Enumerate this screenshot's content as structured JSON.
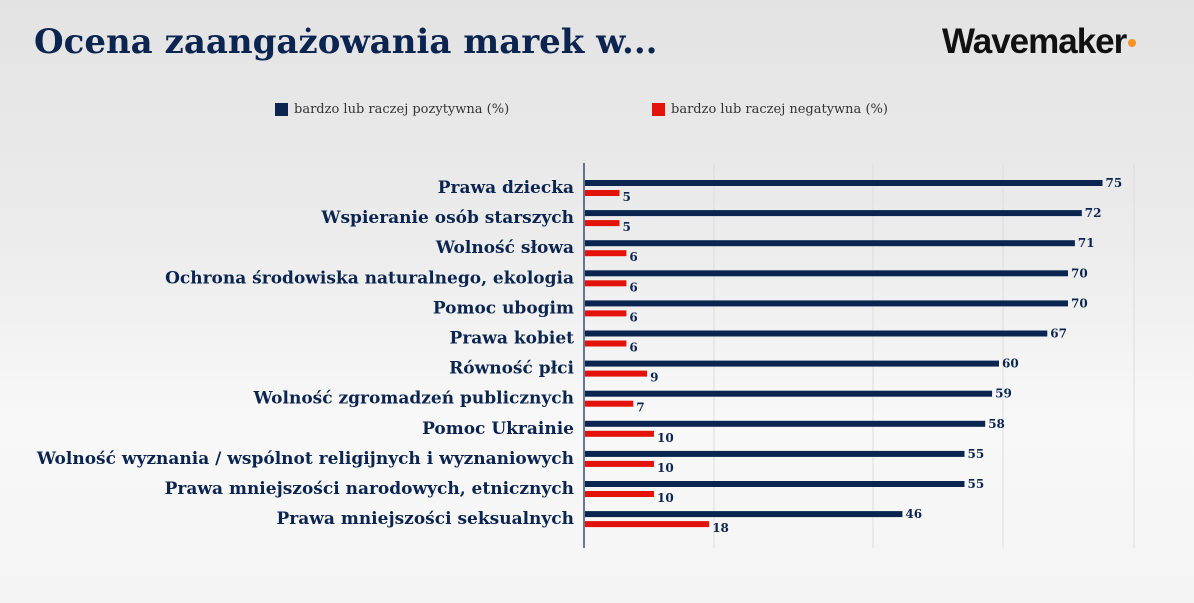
{
  "title": "Ocena zaangażowania marek w...",
  "logo": "Wavemaker",
  "chart_data": {
    "type": "bar",
    "orientation": "horizontal",
    "categories": [
      "Prawa dziecka",
      "Wspieranie osób starszych",
      "Wolność słowa",
      "Ochrona środowiska naturalnego, ekologia",
      "Pomoc ubogim",
      "Prawa kobiet",
      "Równość płci",
      "Wolność zgromadzeń publicznych",
      "Pomoc Ukrainie",
      "Wolność wyznania / wspólnot religijnych i wyznaniowych",
      "Prawa mniejszości narodowych, etnicznych",
      "Prawa mniejszości seksualnych"
    ],
    "series": [
      {
        "name": "bardzo lub raczej pozytywna (%)",
        "color": "#0b2550",
        "values": [
          75,
          72,
          71,
          70,
          70,
          67,
          60,
          59,
          58,
          55,
          55,
          46
        ]
      },
      {
        "name": "bardzo lub raczej negatywna (%)",
        "color": "#e3120b",
        "values": [
          5,
          5,
          6,
          6,
          6,
          6,
          9,
          7,
          10,
          10,
          10,
          18
        ]
      }
    ],
    "legend_position": "top",
    "grid": true,
    "data_labels": true
  }
}
